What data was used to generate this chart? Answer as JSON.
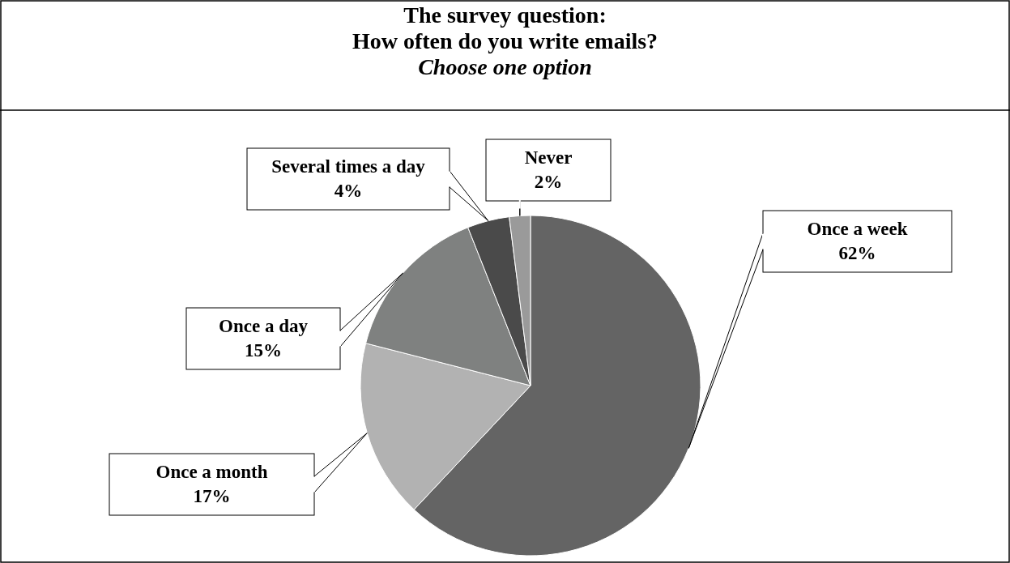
{
  "chart_data": {
    "type": "pie",
    "title": "The survey question:\nHow often do you write emails?",
    "subtitle": "Choose one option",
    "categories": [
      "Once a week",
      "Once a month",
      "Once a day",
      "Several times a day",
      "Never"
    ],
    "values": [
      62,
      17,
      15,
      4,
      2
    ],
    "colors": [
      "#646464",
      "#b2b2b2",
      "#7f8180",
      "#4a4a4a",
      "#9a9a9a"
    ],
    "value_labels": [
      "62%",
      "17%",
      "15%",
      "4%",
      "2%"
    ]
  }
}
